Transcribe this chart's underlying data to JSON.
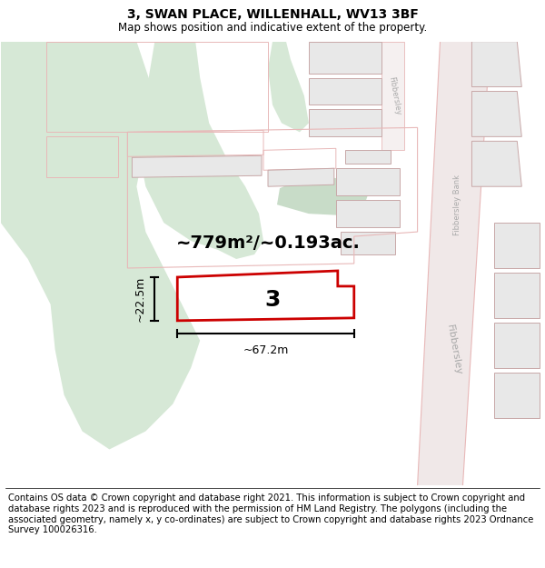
{
  "title": "3, SWAN PLACE, WILLENHALL, WV13 3BF",
  "subtitle": "Map shows position and indicative extent of the property.",
  "footer": "Contains OS data © Crown copyright and database right 2021. This information is subject to Crown copyright and database rights 2023 and is reproduced with the permission of HM Land Registry. The polygons (including the associated geometry, namely x, y co-ordinates) are subject to Crown copyright and database rights 2023 Ordnance Survey 100026316.",
  "area_label": "~779m²/~0.193ac.",
  "width_label": "~67.2m",
  "height_label": "~22.5m",
  "plot_number": "3",
  "map_bg": "#ffffff",
  "green_color": "#d6e8d6",
  "green_dark": "#c8dcc8",
  "plot_fill": "none",
  "plot_outline": "#cc0000",
  "building_fill": "#e8e8e8",
  "building_outline": "#c8a8a8",
  "road_outline": "#e8b8b8",
  "road_fill": "#f5f0f0",
  "title_fontsize": 10,
  "subtitle_fontsize": 8.5,
  "footer_fontsize": 7.2,
  "area_fontsize": 14,
  "dim_fontsize": 9,
  "plot_num_fontsize": 18
}
